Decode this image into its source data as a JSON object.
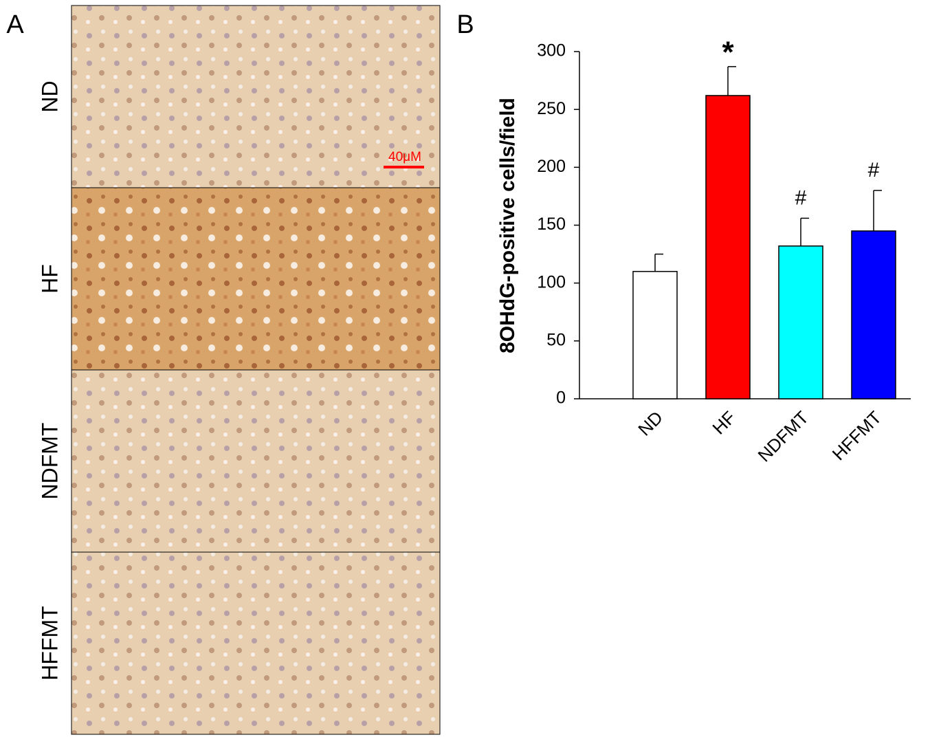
{
  "panel_a": {
    "label": "A",
    "rows": [
      "ND",
      "HF",
      "NDFMT",
      "HFFMT"
    ],
    "scale_bar": "40μM"
  },
  "chart_data": {
    "type": "bar",
    "panel_label": "B",
    "ylabel": "8OHdG-positive cells/field",
    "categories": [
      "ND",
      "HF",
      "NDFMT",
      "HFFMT"
    ],
    "values": [
      110,
      262,
      132,
      145
    ],
    "errors": [
      15,
      25,
      24,
      35
    ],
    "colors": [
      "#ffffff",
      "#ff0000",
      "#00ffff",
      "#0000ff"
    ],
    "annotations": [
      null,
      "*",
      "#",
      "#"
    ],
    "ylim": [
      0,
      300
    ],
    "yticks": [
      0,
      50,
      100,
      150,
      200,
      250,
      300
    ]
  }
}
